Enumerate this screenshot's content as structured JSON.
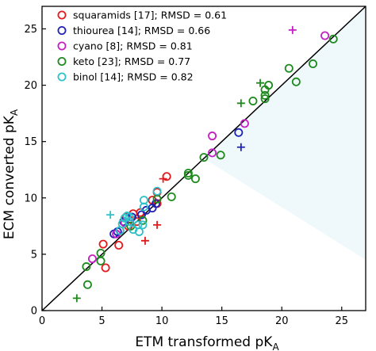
{
  "chart_data": {
    "type": "scatter",
    "xlabel": "ETM transformed pK",
    "xlabel_sub": "A",
    "ylabel": "ECM converted pK",
    "ylabel_sub": "A",
    "xlim": [
      0,
      27
    ],
    "ylim": [
      0,
      27
    ],
    "xticks": [
      0,
      5,
      10,
      15,
      20,
      25
    ],
    "yticks": [
      0,
      5,
      10,
      15,
      20,
      25
    ],
    "diagonal_line": [
      [
        0,
        0
      ],
      [
        27,
        27
      ]
    ],
    "shaded_region": [
      [
        13.5,
        13.5
      ],
      [
        27,
        27
      ],
      [
        27,
        4.5
      ]
    ],
    "legend_position": "upper-left",
    "series": [
      {
        "name": "squaramids [17]; RMSD = 0.61",
        "color": "#e41a1c",
        "circles": [
          [
            10.4,
            11.9
          ],
          [
            9.6,
            10.5
          ],
          [
            9.2,
            9.8
          ],
          [
            5.1,
            5.9
          ],
          [
            5.3,
            3.8
          ],
          [
            6.4,
            5.8
          ],
          [
            6.5,
            7.1
          ],
          [
            7.0,
            8.3
          ],
          [
            7.6,
            8.6
          ],
          [
            8.2,
            8.7
          ],
          [
            9.6,
            9.5
          ],
          [
            7.2,
            7.5
          ],
          [
            7.9,
            7.9
          ]
        ],
        "pluses": [
          [
            10.1,
            11.7
          ],
          [
            9.6,
            7.6
          ],
          [
            8.6,
            6.2
          ]
        ]
      },
      {
        "name": "thiourea [14]; RMSD = 0.66",
        "color": "#1f23b4",
        "circles": [
          [
            9.5,
            9.5
          ],
          [
            6.0,
            6.8
          ],
          [
            6.8,
            7.9
          ],
          [
            7.5,
            8.3
          ],
          [
            8.3,
            8.5
          ],
          [
            8.7,
            8.9
          ],
          [
            9.2,
            9.1
          ],
          [
            16.4,
            15.8
          ],
          [
            7.3,
            7.9
          ],
          [
            6.3,
            7.0
          ]
        ],
        "pluses": [
          [
            16.6,
            14.5
          ]
        ]
      },
      {
        "name": "cyano [8]; RMSD = 0.81",
        "color": "#c41fc4",
        "circles": [
          [
            4.2,
            4.6
          ],
          [
            6.2,
            6.8
          ],
          [
            6.9,
            7.8
          ],
          [
            14.2,
            15.5
          ],
          [
            16.9,
            16.6
          ],
          [
            14.2,
            14.0
          ],
          [
            23.6,
            24.4
          ]
        ],
        "pluses": [
          [
            20.9,
            24.9
          ]
        ]
      },
      {
        "name": "keto [23]; RMSD = 0.77",
        "color": "#1e8a1e",
        "circles": [
          [
            3.8,
            2.3
          ],
          [
            3.7,
            3.9
          ],
          [
            4.9,
            5.1
          ],
          [
            4.9,
            4.4
          ],
          [
            9.6,
            9.9
          ],
          [
            10.8,
            10.1
          ],
          [
            12.2,
            12.0
          ],
          [
            12.8,
            11.7
          ],
          [
            13.5,
            13.6
          ],
          [
            12.2,
            12.2
          ],
          [
            17.6,
            18.6
          ],
          [
            18.6,
            19.1
          ],
          [
            18.9,
            20.0
          ],
          [
            18.6,
            19.6
          ],
          [
            18.6,
            18.8
          ],
          [
            20.6,
            21.5
          ],
          [
            21.2,
            20.3
          ],
          [
            22.6,
            21.9
          ],
          [
            24.3,
            24.1
          ],
          [
            14.9,
            13.8
          ],
          [
            8.4,
            8.0
          ],
          [
            7.4,
            7.5
          ]
        ],
        "pluses": [
          [
            2.9,
            1.1
          ],
          [
            16.6,
            18.4
          ],
          [
            18.2,
            20.2
          ]
        ]
      },
      {
        "name": "binol [14]; RMSD = 0.82",
        "color": "#2fc1c9",
        "circles": [
          [
            6.5,
            7.1
          ],
          [
            6.7,
            7.7
          ],
          [
            7.3,
            7.9
          ],
          [
            7.6,
            7.2
          ],
          [
            8.0,
            7.6
          ],
          [
            8.4,
            7.6
          ],
          [
            8.5,
            9.2
          ],
          [
            8.5,
            9.8
          ],
          [
            9.6,
            10.6
          ],
          [
            7.1,
            8.4
          ],
          [
            8.1,
            7.0
          ],
          [
            6.9,
            8.2
          ],
          [
            7.3,
            8.3
          ]
        ],
        "pluses": [
          [
            5.7,
            8.5
          ]
        ]
      }
    ]
  }
}
